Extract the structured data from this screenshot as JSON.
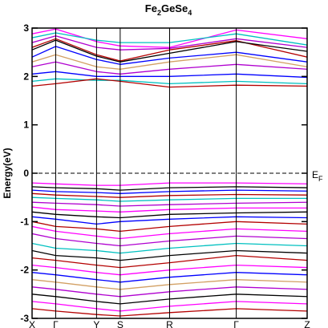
{
  "chart_data": {
    "type": "line",
    "title": {
      "pre": "Fe",
      "sub1": "2",
      "mid": "GeSe",
      "sub2": "4"
    },
    "ylabel": "Energy(eV)",
    "ylim": [
      -3,
      3
    ],
    "yticks": [
      -3,
      -2,
      -1,
      0,
      1,
      2,
      3
    ],
    "ytick_labels": [
      "-3",
      "-2",
      "-1",
      "0",
      "1",
      "2",
      "3"
    ],
    "xlim": [
      0,
      6.4
    ],
    "kpoints": [
      {
        "label": "X",
        "x": 0
      },
      {
        "label": "Γ",
        "x": 0.55
      },
      {
        "label": "Y",
        "x": 1.5
      },
      {
        "label": "S",
        "x": 2.05
      },
      {
        "label": "R",
        "x": 3.2
      },
      {
        "label": "Γ",
        "x": 4.75
      },
      {
        "label": "Z",
        "x": 6.4
      }
    ],
    "fermi_level": {
      "value": 0,
      "label": "E",
      "label_sub": "F"
    },
    "grid": false,
    "series_colors": [
      "#000000",
      "#b40000",
      "#0000ff",
      "#ff00ff",
      "#b000d0",
      "#00c0c0",
      "#d2a064",
      "#9090ff"
    ],
    "bands": [
      {
        "color": "#ff00ff",
        "x": [
          0,
          0.55,
          1.5,
          2.05,
          3.2,
          4.75,
          6.4
        ],
        "y": [
          2.88,
          2.98,
          2.72,
          2.63,
          2.6,
          2.96,
          2.78
        ]
      },
      {
        "color": "#00c0c0",
        "x": [
          0,
          0.55,
          1.5,
          2.05,
          3.2,
          4.75,
          6.4
        ],
        "y": [
          2.8,
          2.9,
          2.75,
          2.7,
          2.7,
          2.88,
          2.65
        ]
      },
      {
        "color": "#b000d0",
        "x": [
          0,
          0.55,
          1.5,
          2.05,
          3.2,
          4.75,
          6.4
        ],
        "y": [
          2.7,
          2.84,
          2.6,
          2.55,
          2.58,
          2.78,
          2.6
        ]
      },
      {
        "color": "#b40000",
        "x": [
          0,
          0.55,
          1.5,
          2.05,
          3.2,
          4.75,
          6.4
        ],
        "y": [
          2.6,
          2.78,
          2.45,
          2.32,
          2.55,
          2.74,
          2.4
        ]
      },
      {
        "color": "#000000",
        "x": [
          0,
          0.55,
          1.5,
          2.05,
          3.2,
          4.75,
          6.4
        ],
        "y": [
          2.55,
          2.75,
          2.42,
          2.3,
          2.48,
          2.72,
          2.52
        ]
      },
      {
        "color": "#0000ff",
        "x": [
          0,
          0.55,
          1.5,
          2.05,
          3.2,
          4.75,
          6.4
        ],
        "y": [
          2.4,
          2.62,
          2.35,
          2.25,
          2.38,
          2.5,
          2.3
        ]
      },
      {
        "color": "#d2a064",
        "x": [
          0,
          0.55,
          1.5,
          2.05,
          3.2,
          4.75,
          6.4
        ],
        "y": [
          2.3,
          2.45,
          2.2,
          2.15,
          2.3,
          2.45,
          2.2
        ]
      },
      {
        "color": "#b000d0",
        "x": [
          0,
          0.55,
          1.5,
          2.05,
          3.2,
          4.75,
          6.4
        ],
        "y": [
          2.2,
          2.3,
          2.1,
          2.05,
          2.15,
          2.25,
          2.15
        ]
      },
      {
        "color": "#0000ff",
        "x": [
          0,
          0.55,
          1.5,
          2.05,
          3.2,
          4.75,
          6.4
        ],
        "y": [
          2.05,
          2.1,
          2.0,
          2.0,
          2.0,
          2.05,
          1.98
        ]
      },
      {
        "color": "#00c0c0",
        "x": [
          0,
          0.55,
          1.5,
          2.05,
          3.2,
          4.75,
          6.4
        ],
        "y": [
          1.9,
          1.95,
          1.92,
          1.92,
          1.85,
          1.9,
          1.85
        ]
      },
      {
        "color": "#b40000",
        "x": [
          0,
          0.55,
          1.5,
          2.05,
          3.2,
          4.75,
          6.4
        ],
        "y": [
          1.8,
          1.85,
          1.95,
          1.9,
          1.78,
          1.82,
          1.8
        ]
      },
      {
        "color": "#ff00ff",
        "x": [
          0,
          0.55,
          1.5,
          2.05,
          3.2,
          4.75,
          6.4
        ],
        "y": [
          -0.2,
          -0.22,
          -0.25,
          -0.25,
          -0.2,
          -0.2,
          -0.22
        ]
      },
      {
        "color": "#000000",
        "x": [
          0,
          0.55,
          1.5,
          2.05,
          3.2,
          4.75,
          6.4
        ],
        "y": [
          -0.28,
          -0.3,
          -0.32,
          -0.35,
          -0.3,
          -0.28,
          -0.3
        ]
      },
      {
        "color": "#0000ff",
        "x": [
          0,
          0.55,
          1.5,
          2.05,
          3.2,
          4.75,
          6.4
        ],
        "y": [
          -0.35,
          -0.38,
          -0.4,
          -0.42,
          -0.38,
          -0.35,
          -0.37
        ]
      },
      {
        "color": "#b40000",
        "x": [
          0,
          0.55,
          1.5,
          2.05,
          3.2,
          4.75,
          6.4
        ],
        "y": [
          -0.42,
          -0.45,
          -0.48,
          -0.5,
          -0.46,
          -0.44,
          -0.45
        ]
      },
      {
        "color": "#00c0c0",
        "x": [
          0,
          0.55,
          1.5,
          2.05,
          3.2,
          4.75,
          6.4
        ],
        "y": [
          -0.5,
          -0.52,
          -0.55,
          -0.58,
          -0.55,
          -0.52,
          -0.52
        ]
      },
      {
        "color": "#b000d0",
        "x": [
          0,
          0.55,
          1.5,
          2.05,
          3.2,
          4.75,
          6.4
        ],
        "y": [
          -0.6,
          -0.62,
          -0.65,
          -0.68,
          -0.65,
          -0.62,
          -0.6
        ]
      },
      {
        "color": "#ff00ff",
        "x": [
          0,
          0.55,
          1.5,
          2.05,
          3.2,
          4.75,
          6.4
        ],
        "y": [
          -0.7,
          -0.75,
          -0.78,
          -0.8,
          -0.75,
          -0.72,
          -0.72
        ]
      },
      {
        "color": "#000000",
        "x": [
          0,
          0.55,
          1.5,
          2.05,
          3.2,
          4.75,
          6.4
        ],
        "y": [
          -0.8,
          -0.85,
          -0.9,
          -0.92,
          -0.85,
          -0.82,
          -0.8
        ]
      },
      {
        "color": "#0000ff",
        "x": [
          0,
          0.55,
          1.5,
          2.05,
          3.2,
          4.75,
          6.4
        ],
        "y": [
          -0.9,
          -0.95,
          -1.05,
          -1.0,
          -0.95,
          -0.9,
          -0.92
        ]
      },
      {
        "color": "#b40000",
        "x": [
          0,
          0.55,
          1.5,
          2.05,
          3.2,
          4.75,
          6.4
        ],
        "y": [
          -1.0,
          -1.1,
          -1.15,
          -1.2,
          -1.1,
          -1.0,
          -1.05
        ]
      },
      {
        "color": "#ff00ff",
        "x": [
          0,
          0.55,
          1.5,
          2.05,
          3.2,
          4.75,
          6.4
        ],
        "y": [
          -1.1,
          -1.2,
          -1.3,
          -1.35,
          -1.25,
          -1.15,
          -1.2
        ]
      },
      {
        "color": "#b000d0",
        "x": [
          0,
          0.55,
          1.5,
          2.05,
          3.2,
          4.75,
          6.4
        ],
        "y": [
          -1.25,
          -1.35,
          -1.45,
          -1.5,
          -1.4,
          -1.3,
          -1.35
        ]
      },
      {
        "color": "#00c0c0",
        "x": [
          0,
          0.55,
          1.5,
          2.05,
          3.2,
          4.75,
          6.4
        ],
        "y": [
          -1.45,
          -1.55,
          -1.6,
          -1.65,
          -1.55,
          -1.45,
          -1.5
        ]
      },
      {
        "color": "#000000",
        "x": [
          0,
          0.55,
          1.5,
          2.05,
          3.2,
          4.75,
          6.4
        ],
        "y": [
          -1.6,
          -1.7,
          -1.75,
          -1.8,
          -1.7,
          -1.6,
          -1.65
        ]
      },
      {
        "color": "#b40000",
        "x": [
          0,
          0.55,
          1.5,
          2.05,
          3.2,
          4.75,
          6.4
        ],
        "y": [
          -1.75,
          -1.8,
          -1.9,
          -1.95,
          -1.85,
          -1.7,
          -1.8
        ]
      },
      {
        "color": "#ff00ff",
        "x": [
          0,
          0.55,
          1.5,
          2.05,
          3.2,
          4.75,
          6.4
        ],
        "y": [
          -1.9,
          -1.95,
          -2.05,
          -2.1,
          -2.0,
          -1.9,
          -1.95
        ]
      },
      {
        "color": "#0000ff",
        "x": [
          0,
          0.55,
          1.5,
          2.05,
          3.2,
          4.75,
          6.4
        ],
        "y": [
          -2.05,
          -2.1,
          -2.2,
          -2.25,
          -2.15,
          -2.05,
          -2.1
        ]
      },
      {
        "color": "#d2a064",
        "x": [
          0,
          0.55,
          1.5,
          2.05,
          3.2,
          4.75,
          6.4
        ],
        "y": [
          -2.2,
          -2.25,
          -2.35,
          -2.4,
          -2.3,
          -2.2,
          -2.25
        ]
      },
      {
        "color": "#b000d0",
        "x": [
          0,
          0.55,
          1.5,
          2.05,
          3.2,
          4.75,
          6.4
        ],
        "y": [
          -2.35,
          -2.4,
          -2.5,
          -2.55,
          -2.45,
          -2.35,
          -2.4
        ]
      },
      {
        "color": "#000000",
        "x": [
          0,
          0.55,
          1.5,
          2.05,
          3.2,
          4.75,
          6.4
        ],
        "y": [
          -2.5,
          -2.55,
          -2.65,
          -2.7,
          -2.6,
          -2.5,
          -2.55
        ]
      },
      {
        "color": "#ff00ff",
        "x": [
          0,
          0.55,
          1.5,
          2.05,
          3.2,
          4.75,
          6.4
        ],
        "y": [
          -2.65,
          -2.7,
          -2.8,
          -2.85,
          -2.75,
          -2.65,
          -2.7
        ]
      },
      {
        "color": "#b40000",
        "x": [
          0,
          0.55,
          1.5,
          2.05,
          3.2,
          4.75,
          6.4
        ],
        "y": [
          -2.8,
          -2.85,
          -2.92,
          -2.95,
          -2.88,
          -2.8,
          -2.85
        ]
      }
    ]
  }
}
